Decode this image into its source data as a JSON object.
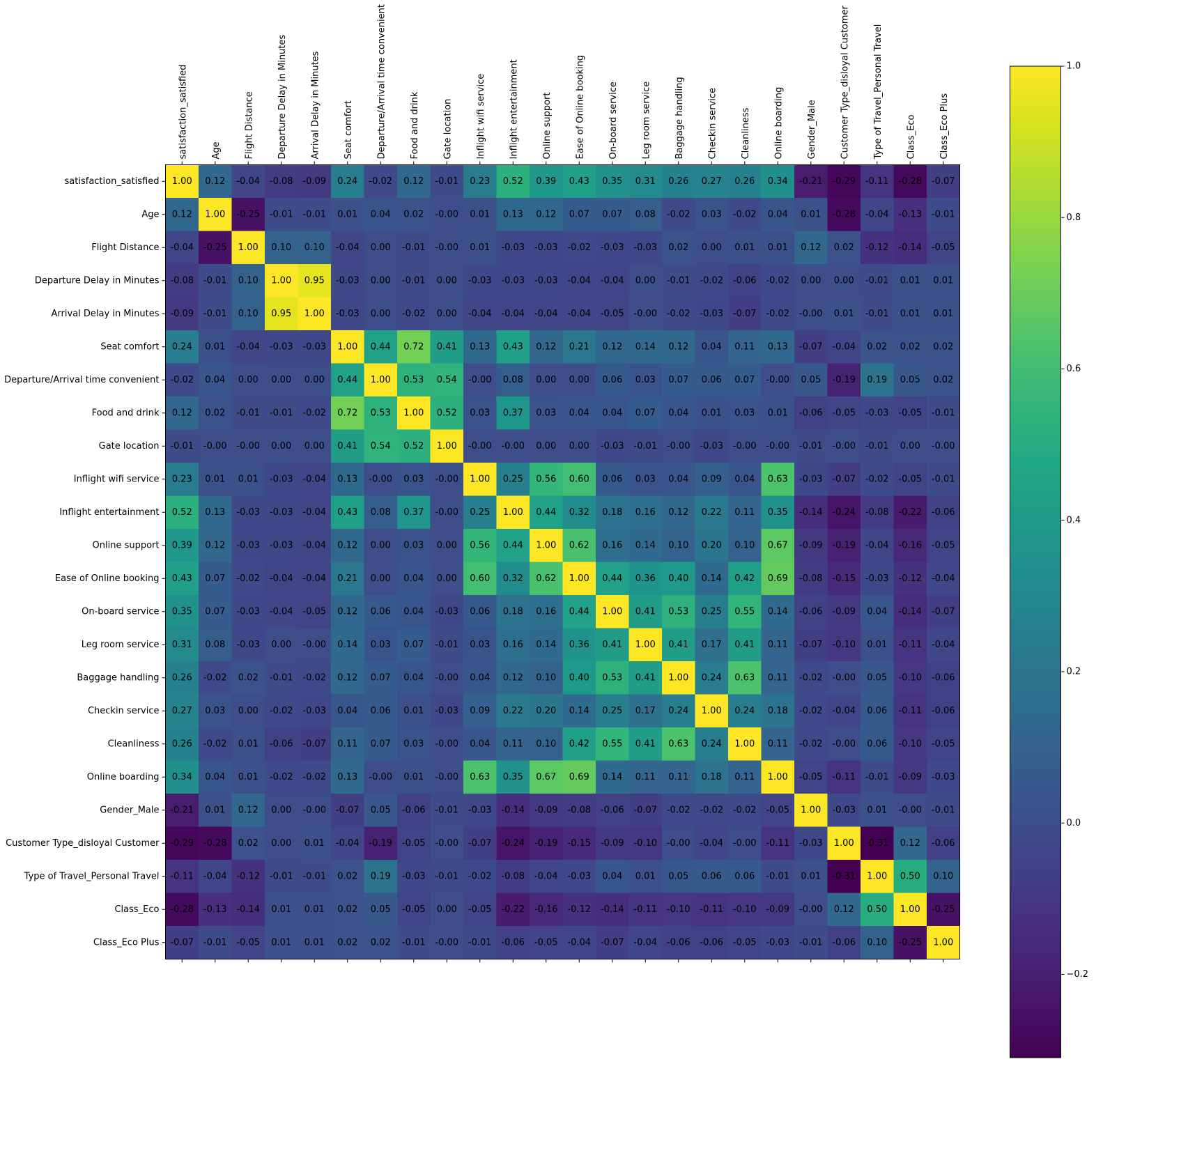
{
  "chart_data": {
    "type": "heatmap",
    "colormap": "viridis",
    "x_tick_position": "top",
    "grid": false,
    "legend": "colorbar-right",
    "labels": [
      "satisfaction_satisfied",
      "Age",
      "Flight Distance",
      "Departure Delay in Minutes",
      "Arrival Delay in Minutes",
      "Seat comfort",
      "Departure/Arrival time convenient",
      "Food and drink",
      "Gate location",
      "Inflight wifi service",
      "Inflight entertainment",
      "Online support",
      "Ease of Online booking",
      "On-board service",
      "Leg room service",
      "Baggage handling",
      "Checkin service",
      "Cleanliness",
      "Online boarding",
      "Gender_Male",
      "Customer Type_disloyal Customer",
      "Type of Travel_Personal Travel",
      "Class_Eco",
      "Class_Eco Plus"
    ],
    "matrix": [
      [
        "1.00",
        "0.12",
        "-0.04",
        "-0.08",
        "-0.09",
        "0.24",
        "-0.02",
        "0.12",
        "-0.01",
        "0.23",
        "0.52",
        "0.39",
        "0.43",
        "0.35",
        "0.31",
        "0.26",
        "0.27",
        "0.26",
        "0.34",
        "-0.21",
        "-0.29",
        "-0.11",
        "-0.28",
        "-0.07"
      ],
      [
        "0.12",
        "1.00",
        "-0.25",
        "-0.01",
        "-0.01",
        "0.01",
        "0.04",
        "0.02",
        "-0.00",
        "0.01",
        "0.13",
        "0.12",
        "0.07",
        "0.07",
        "0.08",
        "-0.02",
        "0.03",
        "-0.02",
        "0.04",
        "0.01",
        "-0.28",
        "-0.04",
        "-0.13",
        "-0.01"
      ],
      [
        "-0.04",
        "-0.25",
        "1.00",
        "0.10",
        "0.10",
        "-0.04",
        "0.00",
        "-0.01",
        "-0.00",
        "0.01",
        "-0.03",
        "-0.03",
        "-0.02",
        "-0.03",
        "-0.03",
        "0.02",
        "0.00",
        "0.01",
        "0.01",
        "0.12",
        "0.02",
        "-0.12",
        "-0.14",
        "-0.05"
      ],
      [
        "-0.08",
        "-0.01",
        "0.10",
        "1.00",
        "0.95",
        "-0.03",
        "0.00",
        "-0.01",
        "0.00",
        "-0.03",
        "-0.03",
        "-0.03",
        "-0.04",
        "-0.04",
        "0.00",
        "-0.01",
        "-0.02",
        "-0.06",
        "-0.02",
        "0.00",
        "0.00",
        "-0.01",
        "0.01",
        "0.01"
      ],
      [
        "-0.09",
        "-0.01",
        "0.10",
        "0.95",
        "1.00",
        "-0.03",
        "0.00",
        "-0.02",
        "0.00",
        "-0.04",
        "-0.04",
        "-0.04",
        "-0.04",
        "-0.05",
        "-0.00",
        "-0.02",
        "-0.03",
        "-0.07",
        "-0.02",
        "-0.00",
        "0.01",
        "-0.01",
        "0.01",
        "0.01"
      ],
      [
        "0.24",
        "0.01",
        "-0.04",
        "-0.03",
        "-0.03",
        "1.00",
        "0.44",
        "0.72",
        "0.41",
        "0.13",
        "0.43",
        "0.12",
        "0.21",
        "0.12",
        "0.14",
        "0.12",
        "0.04",
        "0.11",
        "0.13",
        "-0.07",
        "-0.04",
        "0.02",
        "0.02",
        "0.02"
      ],
      [
        "-0.02",
        "0.04",
        "0.00",
        "0.00",
        "0.00",
        "0.44",
        "1.00",
        "0.53",
        "0.54",
        "-0.00",
        "0.08",
        "0.00",
        "0.00",
        "0.06",
        "0.03",
        "0.07",
        "0.06",
        "0.07",
        "-0.00",
        "0.05",
        "-0.19",
        "0.19",
        "0.05",
        "0.02"
      ],
      [
        "0.12",
        "0.02",
        "-0.01",
        "-0.01",
        "-0.02",
        "0.72",
        "0.53",
        "1.00",
        "0.52",
        "0.03",
        "0.37",
        "0.03",
        "0.04",
        "0.04",
        "0.07",
        "0.04",
        "0.01",
        "0.03",
        "0.01",
        "-0.06",
        "-0.05",
        "-0.03",
        "-0.05",
        "-0.01"
      ],
      [
        "-0.01",
        "-0.00",
        "-0.00",
        "0.00",
        "0.00",
        "0.41",
        "0.54",
        "0.52",
        "1.00",
        "-0.00",
        "-0.00",
        "0.00",
        "0.00",
        "-0.03",
        "-0.01",
        "-0.00",
        "-0.03",
        "-0.00",
        "-0.00",
        "-0.01",
        "-0.00",
        "-0.01",
        "0.00",
        "-0.00"
      ],
      [
        "0.23",
        "0.01",
        "0.01",
        "-0.03",
        "-0.04",
        "0.13",
        "-0.00",
        "0.03",
        "-0.00",
        "1.00",
        "0.25",
        "0.56",
        "0.60",
        "0.06",
        "0.03",
        "0.04",
        "0.09",
        "0.04",
        "0.63",
        "-0.03",
        "-0.07",
        "-0.02",
        "-0.05",
        "-0.01"
      ],
      [
        "0.52",
        "0.13",
        "-0.03",
        "-0.03",
        "-0.04",
        "0.43",
        "0.08",
        "0.37",
        "-0.00",
        "0.25",
        "1.00",
        "0.44",
        "0.32",
        "0.18",
        "0.16",
        "0.12",
        "0.22",
        "0.11",
        "0.35",
        "-0.14",
        "-0.24",
        "-0.08",
        "-0.22",
        "-0.06"
      ],
      [
        "0.39",
        "0.12",
        "-0.03",
        "-0.03",
        "-0.04",
        "0.12",
        "0.00",
        "0.03",
        "0.00",
        "0.56",
        "0.44",
        "1.00",
        "0.62",
        "0.16",
        "0.14",
        "0.10",
        "0.20",
        "0.10",
        "0.67",
        "-0.09",
        "-0.19",
        "-0.04",
        "-0.16",
        "-0.05"
      ],
      [
        "0.43",
        "0.07",
        "-0.02",
        "-0.04",
        "-0.04",
        "0.21",
        "0.00",
        "0.04",
        "0.00",
        "0.60",
        "0.32",
        "0.62",
        "1.00",
        "0.44",
        "0.36",
        "0.40",
        "0.14",
        "0.42",
        "0.69",
        "-0.08",
        "-0.15",
        "-0.03",
        "-0.12",
        "-0.04"
      ],
      [
        "0.35",
        "0.07",
        "-0.03",
        "-0.04",
        "-0.05",
        "0.12",
        "0.06",
        "0.04",
        "-0.03",
        "0.06",
        "0.18",
        "0.16",
        "0.44",
        "1.00",
        "0.41",
        "0.53",
        "0.25",
        "0.55",
        "0.14",
        "-0.06",
        "-0.09",
        "0.04",
        "-0.14",
        "-0.07"
      ],
      [
        "0.31",
        "0.08",
        "-0.03",
        "0.00",
        "-0.00",
        "0.14",
        "0.03",
        "0.07",
        "-0.01",
        "0.03",
        "0.16",
        "0.14",
        "0.36",
        "0.41",
        "1.00",
        "0.41",
        "0.17",
        "0.41",
        "0.11",
        "-0.07",
        "-0.10",
        "0.01",
        "-0.11",
        "-0.04"
      ],
      [
        "0.26",
        "-0.02",
        "0.02",
        "-0.01",
        "-0.02",
        "0.12",
        "0.07",
        "0.04",
        "-0.00",
        "0.04",
        "0.12",
        "0.10",
        "0.40",
        "0.53",
        "0.41",
        "1.00",
        "0.24",
        "0.63",
        "0.11",
        "-0.02",
        "-0.00",
        "0.05",
        "-0.10",
        "-0.06"
      ],
      [
        "0.27",
        "0.03",
        "0.00",
        "-0.02",
        "-0.03",
        "0.04",
        "0.06",
        "0.01",
        "-0.03",
        "0.09",
        "0.22",
        "0.20",
        "0.14",
        "0.25",
        "0.17",
        "0.24",
        "1.00",
        "0.24",
        "0.18",
        "-0.02",
        "-0.04",
        "0.06",
        "-0.11",
        "-0.06"
      ],
      [
        "0.26",
        "-0.02",
        "0.01",
        "-0.06",
        "-0.07",
        "0.11",
        "0.07",
        "0.03",
        "-0.00",
        "0.04",
        "0.11",
        "0.10",
        "0.42",
        "0.55",
        "0.41",
        "0.63",
        "0.24",
        "1.00",
        "0.11",
        "-0.02",
        "-0.00",
        "0.06",
        "-0.10",
        "-0.05"
      ],
      [
        "0.34",
        "0.04",
        "0.01",
        "-0.02",
        "-0.02",
        "0.13",
        "-0.00",
        "0.01",
        "-0.00",
        "0.63",
        "0.35",
        "0.67",
        "0.69",
        "0.14",
        "0.11",
        "0.11",
        "0.18",
        "0.11",
        "1.00",
        "-0.05",
        "-0.11",
        "-0.01",
        "-0.09",
        "-0.03"
      ],
      [
        "-0.21",
        "0.01",
        "0.12",
        "0.00",
        "-0.00",
        "-0.07",
        "0.05",
        "-0.06",
        "-0.01",
        "-0.03",
        "-0.14",
        "-0.09",
        "-0.08",
        "-0.06",
        "-0.07",
        "-0.02",
        "-0.02",
        "-0.02",
        "-0.05",
        "1.00",
        "-0.03",
        "0.01",
        "-0.00",
        "-0.01"
      ],
      [
        "-0.29",
        "-0.28",
        "0.02",
        "0.00",
        "0.01",
        "-0.04",
        "-0.19",
        "-0.05",
        "-0.00",
        "-0.07",
        "-0.24",
        "-0.19",
        "-0.15",
        "-0.09",
        "-0.10",
        "-0.00",
        "-0.04",
        "-0.00",
        "-0.11",
        "-0.03",
        "1.00",
        "-0.31",
        "0.12",
        "-0.06"
      ],
      [
        "-0.11",
        "-0.04",
        "-0.12",
        "-0.01",
        "-0.01",
        "0.02",
        "0.19",
        "-0.03",
        "-0.01",
        "-0.02",
        "-0.08",
        "-0.04",
        "-0.03",
        "0.04",
        "0.01",
        "0.05",
        "0.06",
        "0.06",
        "-0.01",
        "0.01",
        "-0.31",
        "1.00",
        "0.50",
        "0.10"
      ],
      [
        "-0.28",
        "-0.13",
        "-0.14",
        "0.01",
        "0.01",
        "0.02",
        "0.05",
        "-0.05",
        "0.00",
        "-0.05",
        "-0.22",
        "-0.16",
        "-0.12",
        "-0.14",
        "-0.11",
        "-0.10",
        "-0.11",
        "-0.10",
        "-0.09",
        "-0.00",
        "0.12",
        "0.50",
        "1.00",
        "-0.25"
      ],
      [
        "-0.07",
        "-0.01",
        "-0.05",
        "0.01",
        "0.01",
        "0.02",
        "0.02",
        "-0.01",
        "-0.00",
        "-0.01",
        "-0.06",
        "-0.05",
        "-0.04",
        "-0.07",
        "-0.04",
        "-0.06",
        "-0.06",
        "-0.05",
        "-0.03",
        "-0.01",
        "-0.06",
        "0.10",
        "-0.25",
        "1.00"
      ]
    ],
    "colorbar": {
      "min": -0.31,
      "max": 1.0,
      "ticks": [
        -0.2,
        0.0,
        0.2,
        0.4,
        0.6,
        0.8,
        1.0
      ],
      "tick_labels": [
        "−0.2",
        "0.0",
        "0.2",
        "0.4",
        "0.6",
        "0.8",
        "1.0"
      ]
    }
  }
}
